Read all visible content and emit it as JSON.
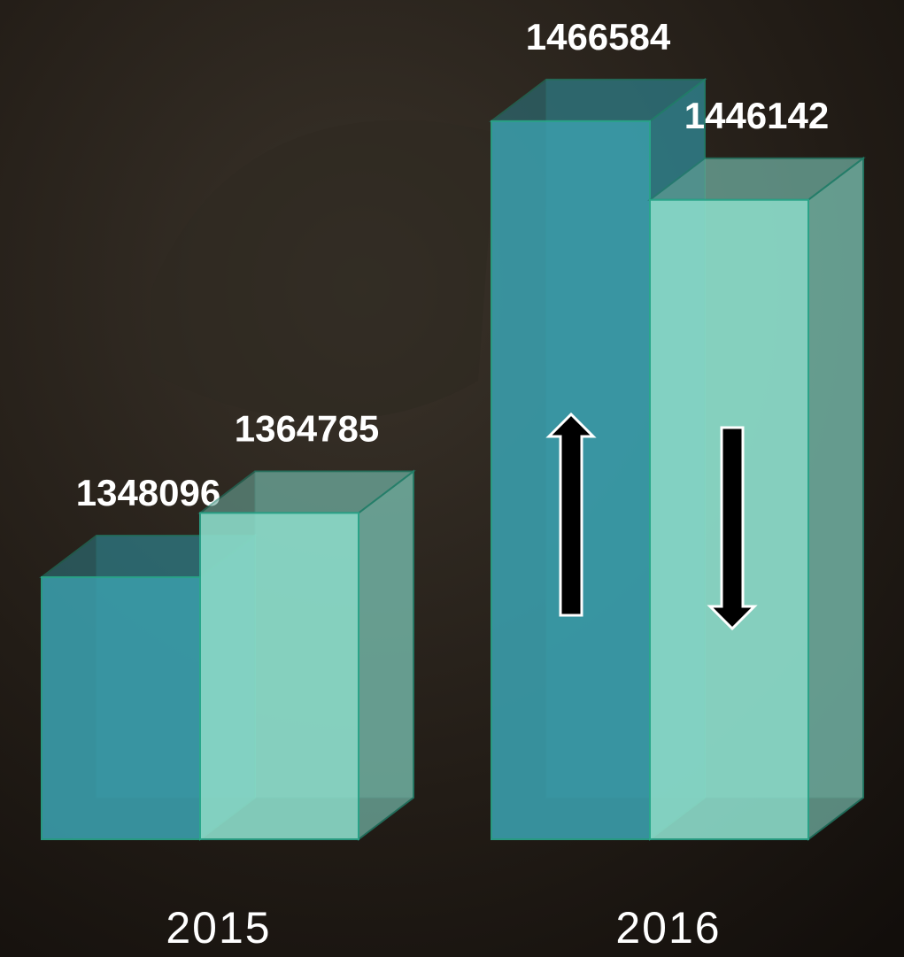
{
  "chart_data": {
    "type": "bar3d",
    "categories": [
      "2015",
      "2016"
    ],
    "series": [
      {
        "color": "#3a9dab",
        "values": [
          1348096,
          1466584
        ]
      },
      {
        "color": "#8cdcca",
        "values": [
          1364785,
          1446142
        ]
      }
    ],
    "ylim": [
      1280000,
      1470000
    ]
  }
}
